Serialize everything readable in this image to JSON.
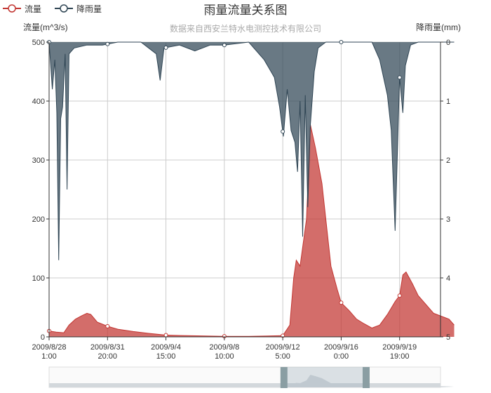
{
  "chart_data": {
    "type": "area",
    "title": "雨量流量关系图",
    "subtitle": "数据来自西安兰特水电测控技术有限公司",
    "legend": [
      "流量",
      "降雨量"
    ],
    "legend_position": "top-left",
    "y_left": {
      "label": "流量(m^3/s)",
      "range": [
        0,
        500
      ],
      "ticks": [
        "0",
        "100",
        "200",
        "300",
        "400",
        "500"
      ]
    },
    "y_right": {
      "label": "降雨量(mm)",
      "range": [
        0,
        5
      ],
      "inverted": true,
      "ticks": [
        "0",
        "1",
        "2",
        "3",
        "4",
        "5"
      ]
    },
    "x_ticks": [
      [
        "2009/8/28",
        "1:00"
      ],
      [
        "2009/8/31",
        "20:00"
      ],
      [
        "2009/9/4",
        "15:00"
      ],
      [
        "2009/9/8",
        "10:00"
      ],
      [
        "2009/9/12",
        "5:00"
      ],
      [
        "2009/9/16",
        "0:00"
      ],
      [
        "2009/9/19",
        "19:00"
      ]
    ],
    "grid": true,
    "colors": {
      "flow": "#c23531",
      "rain": "#2f4554",
      "grid": "#cccccc"
    },
    "series": [
      {
        "name": "流量",
        "unit": "m^3/s",
        "points": [
          [
            "2009/8/28 1:00",
            10
          ],
          [
            "2009/8/28 12:00",
            8
          ],
          [
            "2009/8/29 0:00",
            7
          ],
          [
            "2009/8/29 8:00",
            20
          ],
          [
            "2009/8/29 18:00",
            30
          ],
          [
            "2009/8/30 4:00",
            36
          ],
          [
            "2009/8/30 12:00",
            40
          ],
          [
            "2009/8/30 18:00",
            38
          ],
          [
            "2009/8/31 4:00",
            25
          ],
          [
            "2009/8/31 20:00",
            18
          ],
          [
            "2009/9/1 12:00",
            13
          ],
          [
            "2009/9/2 12:00",
            9
          ],
          [
            "2009/9/3 12:00",
            6
          ],
          [
            "2009/9/4 15:00",
            3
          ],
          [
            "2009/9/6 0:00",
            2
          ],
          [
            "2009/9/8 10:00",
            1
          ],
          [
            "2009/9/10 0:00",
            1
          ],
          [
            "2009/9/12 5:00",
            2
          ],
          [
            "2009/9/12 16:00",
            20
          ],
          [
            "2009/9/12 22:00",
            100
          ],
          [
            "2009/9/13 2:00",
            130
          ],
          [
            "2009/9/13 8:00",
            120
          ],
          [
            "2009/9/13 18:00",
            200
          ],
          [
            "2009/9/14 0:00",
            360
          ],
          [
            "2009/9/14 8:00",
            320
          ],
          [
            "2009/9/14 18:00",
            260
          ],
          [
            "2009/9/15 2:00",
            180
          ],
          [
            "2009/9/15 8:00",
            120
          ],
          [
            "2009/9/15 18:00",
            80
          ],
          [
            "2009/9/16 0:00",
            58
          ],
          [
            "2009/9/16 12:00",
            45
          ],
          [
            "2009/9/17 0:00",
            30
          ],
          [
            "2009/9/17 12:00",
            22
          ],
          [
            "2009/9/18 0:00",
            15
          ],
          [
            "2009/9/18 12:00",
            20
          ],
          [
            "2009/9/19 0:00",
            38
          ],
          [
            "2009/9/19 12:00",
            60
          ],
          [
            "2009/9/19 19:00",
            70
          ],
          [
            "2009/9/20 0:00",
            105
          ],
          [
            "2009/9/20 5:00",
            110
          ],
          [
            "2009/9/20 15:00",
            90
          ],
          [
            "2009/9/21 0:00",
            70
          ],
          [
            "2009/9/21 12:00",
            55
          ],
          [
            "2009/9/22 0:00",
            40
          ],
          [
            "2009/9/22 12:00",
            35
          ],
          [
            "2009/9/23 0:00",
            30
          ],
          [
            "2009/9/23 8:00",
            20
          ]
        ]
      },
      {
        "name": "降雨量",
        "unit": "mm",
        "points": [
          [
            "2009/8/28 1:00",
            0
          ],
          [
            "2009/8/28 6:00",
            0.8
          ],
          [
            "2009/8/28 10:00",
            0.3
          ],
          [
            "2009/8/28 13:00",
            1.2
          ],
          [
            "2009/8/28 16:00",
            3.7
          ],
          [
            "2009/8/28 19:00",
            1.3
          ],
          [
            "2009/8/28 22:00",
            1.1
          ],
          [
            "2009/8/29 2:00",
            0.2
          ],
          [
            "2009/8/29 5:00",
            2.5
          ],
          [
            "2009/8/29 8:00",
            0.2
          ],
          [
            "2009/8/29 16:00",
            0.1
          ],
          [
            "2009/8/30 12:00",
            0.05
          ],
          [
            "2009/8/31 12:00",
            0.05
          ],
          [
            "2009/9/1 12:00",
            0
          ],
          [
            "2009/9/3 0:00",
            0
          ],
          [
            "2009/9/4 0:00",
            0.2
          ],
          [
            "2009/9/4 6:00",
            0.65
          ],
          [
            "2009/9/4 12:00",
            0.1
          ],
          [
            "2009/9/5 12:00",
            0.05
          ],
          [
            "2009/9/6 12:00",
            0.15
          ],
          [
            "2009/9/7 12:00",
            0.05
          ],
          [
            "2009/9/8 10:00",
            0.05
          ],
          [
            "2009/9/10 0:00",
            0
          ],
          [
            "2009/9/11 0:00",
            0.3
          ],
          [
            "2009/9/11 16:00",
            0.6
          ],
          [
            "2009/9/12 0:00",
            1.1
          ],
          [
            "2009/9/12 6:00",
            1.6
          ],
          [
            "2009/9/12 12:00",
            0.8
          ],
          [
            "2009/9/12 18:00",
            1.5
          ],
          [
            "2009/9/13 0:00",
            1.7
          ],
          [
            "2009/9/13 4:00",
            2.2
          ],
          [
            "2009/9/13 8:00",
            1.0
          ],
          [
            "2009/9/13 12:00",
            3.3
          ],
          [
            "2009/9/13 16:00",
            0.9
          ],
          [
            "2009/9/13 20:00",
            2.8
          ],
          [
            "2009/9/14 0:00",
            1.4
          ],
          [
            "2009/9/14 6:00",
            0.5
          ],
          [
            "2009/9/14 12:00",
            0.1
          ],
          [
            "2009/9/15 0:00",
            0
          ],
          [
            "2009/9/16 0:00",
            0
          ],
          [
            "2009/9/18 0:00",
            0
          ],
          [
            "2009/9/18 12:00",
            0.3
          ],
          [
            "2009/9/19 0:00",
            0.9
          ],
          [
            "2009/9/19 6:00",
            1.5
          ],
          [
            "2009/9/19 12:00",
            3.2
          ],
          [
            "2009/9/19 19:00",
            0.6
          ],
          [
            "2009/9/20 0:00",
            1.2
          ],
          [
            "2009/9/20 4:00",
            0.4
          ],
          [
            "2009/9/20 12:00",
            0.05
          ],
          [
            "2009/9/21 0:00",
            0
          ],
          [
            "2009/9/23 8:00",
            0
          ]
        ]
      }
    ],
    "data_zoom": {
      "start": 0.6,
      "end": 0.81
    }
  }
}
